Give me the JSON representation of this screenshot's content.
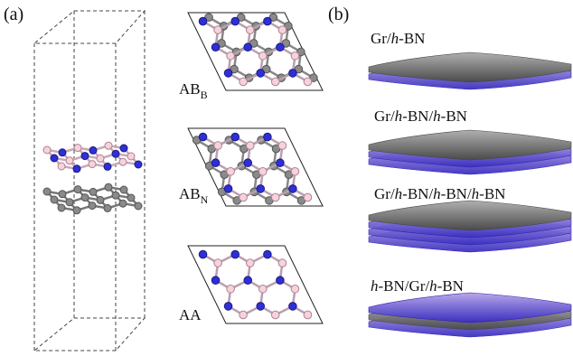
{
  "panels": {
    "a": {
      "label": "(a)",
      "stackings": [
        {
          "name": "AB",
          "subscript": "B"
        },
        {
          "name": "AB",
          "subscript": "N"
        },
        {
          "name": "AA"
        }
      ]
    },
    "b": {
      "label": "(b)",
      "systems": [
        [
          {
            "text": "Gr/"
          },
          {
            "text": "h",
            "italic": true
          },
          {
            "text": "-BN"
          }
        ],
        [
          {
            "text": "Gr/"
          },
          {
            "text": "h",
            "italic": true
          },
          {
            "text": "-BN/"
          },
          {
            "text": "h",
            "italic": true
          },
          {
            "text": "-BN"
          }
        ],
        [
          {
            "text": "Gr/"
          },
          {
            "text": "h",
            "italic": true
          },
          {
            "text": "-BN/"
          },
          {
            "text": "h",
            "italic": true
          },
          {
            "text": "-BN/"
          },
          {
            "text": "h",
            "italic": true
          },
          {
            "text": "-BN"
          }
        ],
        [
          {
            "text": "h",
            "italic": true
          },
          {
            "text": "-BN/Gr/"
          },
          {
            "text": "h",
            "italic": true
          },
          {
            "text": "-BN"
          }
        ]
      ]
    }
  }
}
